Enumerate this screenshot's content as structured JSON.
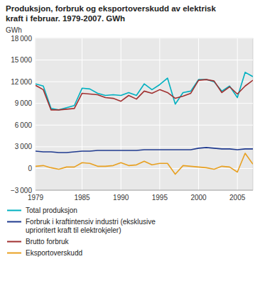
{
  "chart_data": {
    "type": "line",
    "title": "Produksjon, forbruk og eksportoverskudd av elektrisk\nkraft i februar. 1979-2007. GWh",
    "y_label": "GWh",
    "x": [
      1979,
      1980,
      1981,
      1982,
      1983,
      1984,
      1985,
      1986,
      1987,
      1988,
      1989,
      1990,
      1991,
      1992,
      1993,
      1994,
      1995,
      1996,
      1997,
      1998,
      1999,
      2000,
      2001,
      2002,
      2003,
      2004,
      2005,
      2006,
      2007
    ],
    "series": [
      {
        "name": "Total produksjon",
        "color": "#00b0c0",
        "values": [
          11700,
          11400,
          8300,
          8100,
          8400,
          8700,
          11100,
          11000,
          10400,
          10100,
          10200,
          10100,
          10500,
          10100,
          11700,
          10900,
          11600,
          12500,
          8900,
          10500,
          10700,
          12300,
          12300,
          12000,
          10700,
          11400,
          9800,
          13300,
          12700
        ]
      },
      {
        "name": "Brutto forbruk",
        "color": "#a03030",
        "values": [
          11500,
          10900,
          8100,
          8100,
          8200,
          8300,
          10400,
          10300,
          10200,
          9800,
          9700,
          9300,
          10100,
          9600,
          10700,
          10400,
          10900,
          10500,
          9700,
          10000,
          10400,
          12200,
          12300,
          12100,
          10500,
          11300,
          10300,
          11400,
          12200
        ]
      },
      {
        "name": "Forbruk i kraftintensiv industri (eksklusive\nuprioritert kraft til elektrokjeler)",
        "color": "#1f3a8f",
        "values": [
          2400,
          2300,
          2300,
          2200,
          2200,
          2300,
          2400,
          2400,
          2500,
          2500,
          2500,
          2500,
          2500,
          2500,
          2600,
          2600,
          2600,
          2600,
          2600,
          2600,
          2600,
          2800,
          2900,
          2800,
          2700,
          2700,
          2600,
          2700,
          2700
        ]
      },
      {
        "name": "Eksportoverskudd",
        "color": "#e8a020",
        "values": [
          300,
          400,
          100,
          -100,
          200,
          200,
          800,
          700,
          300,
          300,
          400,
          800,
          400,
          500,
          1000,
          500,
          700,
          700,
          -800,
          400,
          300,
          200,
          100,
          -100,
          300,
          200,
          -500,
          2100,
          600
        ]
      }
    ],
    "xlim": [
      1979,
      2007
    ],
    "xticks": [
      1979,
      1985,
      1990,
      1995,
      2000,
      2005
    ],
    "ylim": [
      -3000,
      18000
    ],
    "yticks": [
      {
        "value": -3000,
        "label": "−3 000"
      },
      0,
      {
        "value": 3000,
        "label": "3 000"
      },
      {
        "value": 6000,
        "label": "6 000"
      },
      {
        "value": 9000,
        "label": "9 000"
      },
      {
        "value": 12000,
        "label": "12 000"
      },
      {
        "value": 15000,
        "label": "15 000"
      },
      {
        "value": 18000,
        "label": "18 000"
      }
    ],
    "grid": true,
    "legend": "bottom"
  }
}
